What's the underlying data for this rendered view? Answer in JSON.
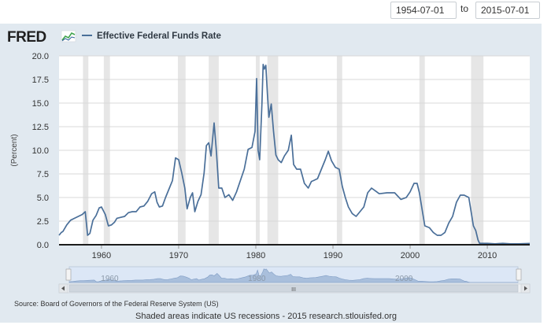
{
  "header": {
    "start_date": "1954-07-01",
    "separator": "to",
    "end_date": "2015-07-01",
    "logo_text": "FRED",
    "series_title": "Effective Federal Funds Rate"
  },
  "footer": {
    "source": "Source: Board of Governors of the Federal Reserve System (US)",
    "note": "Shaded areas indicate US recessions - 2015 research.stlouisfed.org"
  },
  "navigator": {
    "labels": [
      "1960",
      "1980",
      "2000"
    ],
    "scroll_thumb": "III"
  },
  "colors": {
    "line": "#4a6f99",
    "recession": "#e6e6e6",
    "panel": "#e1e9f0",
    "navigator_fill": "#a9bfdc",
    "navigator_window": "#dce7f6"
  },
  "chart_data": {
    "type": "line",
    "title": "Effective Federal Funds Rate",
    "xlabel": "",
    "ylabel": "(Percent)",
    "xlim": [
      1954.5,
      2015.5
    ],
    "ylim": [
      0,
      20
    ],
    "y_ticks": [
      "0.0",
      "2.5",
      "5.0",
      "7.5",
      "10.0",
      "12.5",
      "15.0",
      "17.5",
      "20.0"
    ],
    "x_ticks": [
      "1960",
      "1970",
      "1980",
      "1990",
      "2000",
      "2010"
    ],
    "grid": true,
    "recessions": [
      [
        1957.6,
        1958.3
      ],
      [
        1960.3,
        1961.1
      ],
      [
        1969.9,
        1970.9
      ],
      [
        1973.9,
        1975.2
      ],
      [
        1980.0,
        1980.5
      ],
      [
        1981.5,
        1982.9
      ],
      [
        1990.5,
        1991.2
      ],
      [
        2001.2,
        2001.9
      ],
      [
        2007.9,
        2009.5
      ]
    ],
    "series": [
      {
        "name": "Effective Federal Funds Rate",
        "x": [
          1954.5,
          1954.8,
          1955.0,
          1955.5,
          1956.0,
          1956.5,
          1957.0,
          1957.5,
          1957.9,
          1958.2,
          1958.5,
          1958.9,
          1959.3,
          1959.7,
          1960.0,
          1960.5,
          1960.9,
          1961.3,
          1961.7,
          1962.0,
          1962.5,
          1963.0,
          1963.5,
          1964.0,
          1964.5,
          1965.0,
          1965.5,
          1966.0,
          1966.5,
          1966.9,
          1967.2,
          1967.5,
          1967.9,
          1968.3,
          1968.8,
          1969.2,
          1969.6,
          1970.0,
          1970.4,
          1970.8,
          1971.1,
          1971.5,
          1971.8,
          1972.1,
          1972.5,
          1972.9,
          1973.3,
          1973.6,
          1973.9,
          1974.2,
          1974.6,
          1974.9,
          1975.2,
          1975.6,
          1976.0,
          1976.5,
          1977.0,
          1977.5,
          1978.0,
          1978.5,
          1979.0,
          1979.5,
          1979.9,
          1980.1,
          1980.3,
          1980.5,
          1980.8,
          1980.95,
          1981.1,
          1981.3,
          1981.5,
          1981.7,
          1982.0,
          1982.3,
          1982.6,
          1982.9,
          1983.3,
          1983.7,
          1984.2,
          1984.6,
          1984.9,
          1985.3,
          1985.8,
          1986.3,
          1986.8,
          1987.2,
          1987.5,
          1988.0,
          1988.5,
          1989.0,
          1989.4,
          1989.8,
          1990.3,
          1990.8,
          1991.2,
          1991.6,
          1992.0,
          1992.5,
          1993.0,
          1994.0,
          1994.5,
          1995.0,
          1995.5,
          1996.0,
          1997.0,
          1998.0,
          1998.8,
          1999.5,
          2000.0,
          2000.5,
          2000.9,
          2001.2,
          2001.6,
          2001.9,
          2002.5,
          2003.0,
          2003.5,
          2004.0,
          2004.5,
          2005.0,
          2005.5,
          2006.0,
          2006.5,
          2007.0,
          2007.6,
          2007.9,
          2008.2,
          2008.5,
          2008.8,
          2009.0,
          2010.0,
          2011.0,
          2012.0,
          2013.0,
          2014.0,
          2015.5
        ],
        "values": [
          1.0,
          1.3,
          1.4,
          2.1,
          2.6,
          2.8,
          3.0,
          3.2,
          3.5,
          1.0,
          1.2,
          2.6,
          3.1,
          3.9,
          4.0,
          3.2,
          2.0,
          2.1,
          2.4,
          2.8,
          2.9,
          3.0,
          3.4,
          3.5,
          3.5,
          4.0,
          4.1,
          4.6,
          5.4,
          5.6,
          4.5,
          4.0,
          4.1,
          5.0,
          6.0,
          6.8,
          9.2,
          9.0,
          7.6,
          6.0,
          3.8,
          5.0,
          5.5,
          3.5,
          4.6,
          5.3,
          7.6,
          10.5,
          10.8,
          9.4,
          12.9,
          9.8,
          6.0,
          6.0,
          5.0,
          5.3,
          4.7,
          5.6,
          6.8,
          8.0,
          10.1,
          10.3,
          12.0,
          17.6,
          10.0,
          9.0,
          15.0,
          19.1,
          18.6,
          19.0,
          16.0,
          13.5,
          14.9,
          12.0,
          9.5,
          9.0,
          8.7,
          9.4,
          10.0,
          11.6,
          8.5,
          8.0,
          8.0,
          6.5,
          6.0,
          6.7,
          6.8,
          7.0,
          8.0,
          9.0,
          9.9,
          8.9,
          8.2,
          8.0,
          6.2,
          5.0,
          4.0,
          3.3,
          3.0,
          4.0,
          5.5,
          6.0,
          5.7,
          5.4,
          5.5,
          5.5,
          4.8,
          5.0,
          5.6,
          6.5,
          6.5,
          5.5,
          3.5,
          2.0,
          1.8,
          1.3,
          1.0,
          1.0,
          1.3,
          2.3,
          3.0,
          4.5,
          5.25,
          5.25,
          5.0,
          3.5,
          2.0,
          1.5,
          0.5,
          0.15,
          0.15,
          0.1,
          0.15,
          0.1,
          0.1,
          0.13
        ]
      }
    ]
  }
}
